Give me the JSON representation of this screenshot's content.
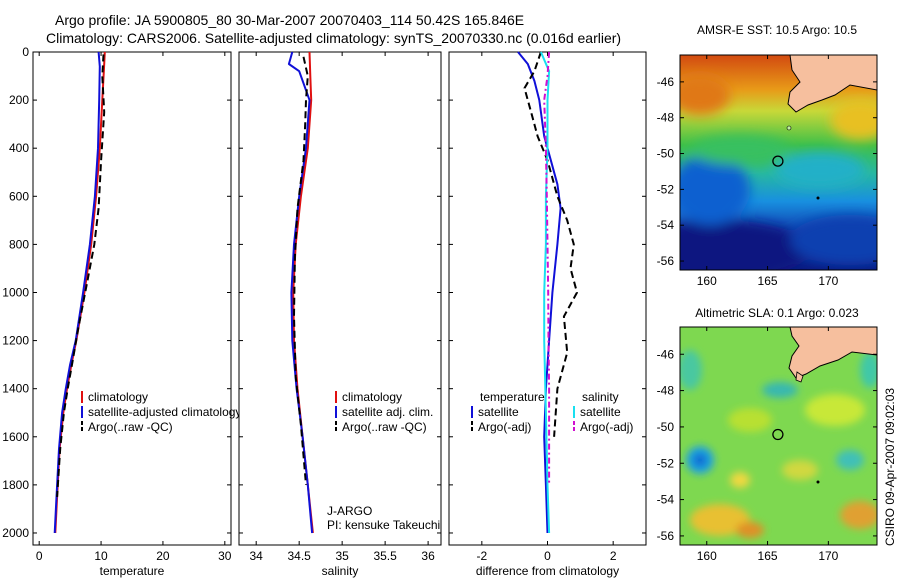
{
  "header": {
    "line1": "Argo profile: JA 5900805_80 30-Mar-2007 20070403_114 50.42S 165.846E",
    "line2": "Climatology: CARS2006. Satellite-adjusted climatology: synTS_20070330.nc (0.016d earlier)"
  },
  "credit": "CSIRO 09-Apr-2007 09:02:03",
  "colors": {
    "red": "#e01010",
    "blue": "#1010d8",
    "black": "#000000",
    "cyan": "#18e0f0",
    "magenta": "#d010d0"
  },
  "chart_data": [
    {
      "type": "line",
      "xlabel": "temperature",
      "ylabel": "",
      "xlim": [
        -1,
        31
      ],
      "ylim": [
        2050,
        0
      ],
      "xticks": [
        "0",
        "10",
        "20",
        "30"
      ],
      "yticks": [
        "0",
        "200",
        "400",
        "600",
        "800",
        "1000",
        "1200",
        "1400",
        "1600",
        "1800",
        "2000"
      ],
      "legend": [
        "climatology",
        "satellite-adjusted climatology",
        "Argo(..raw -QC)"
      ],
      "legend_position": "bottom-right",
      "series": [
        {
          "name": "climatology",
          "color": "red",
          "dash": "solid",
          "x": [
            10.6,
            10.5,
            10.2,
            9.8,
            9.2,
            8.4,
            7.3,
            6.0,
            5.2,
            4.5,
            3.9,
            3.3,
            2.9,
            2.6
          ],
          "y": [
            0,
            50,
            200,
            400,
            600,
            800,
            1000,
            1200,
            1300,
            1400,
            1500,
            1650,
            1850,
            2000
          ]
        },
        {
          "name": "satellite-adjusted climatology",
          "color": "blue",
          "dash": "solid",
          "x": [
            9.6,
            9.8,
            9.7,
            9.5,
            9.0,
            8.2,
            7.1,
            5.9,
            5.0,
            4.3,
            3.7,
            3.2,
            2.8,
            2.5
          ],
          "y": [
            0,
            60,
            200,
            400,
            600,
            800,
            1000,
            1200,
            1300,
            1400,
            1500,
            1650,
            1850,
            2000
          ]
        },
        {
          "name": "Argo(..raw -QC)",
          "color": "black",
          "dash": "dashed",
          "x": [
            10.4,
            10.2,
            10.5,
            10.0,
            9.6,
            8.9,
            7.8,
            6.3,
            5.3,
            4.6,
            4.0,
            3.4,
            2.9
          ],
          "y": [
            10,
            100,
            250,
            450,
            650,
            800,
            950,
            1150,
            1300,
            1400,
            1500,
            1650,
            1850
          ]
        }
      ]
    },
    {
      "type": "line",
      "xlabel": "salinity",
      "ylabel": "",
      "xlim": [
        33.8,
        36.15
      ],
      "ylim": [
        2050,
        0
      ],
      "xticks": [
        "34",
        "34.5",
        "35",
        "35.5",
        "36"
      ],
      "legend": [
        "climatology",
        "satellite adj. clim.",
        "Argo(..raw -QC)"
      ],
      "legend_position": "bottom-right",
      "annotation": [
        "J-ARGO",
        "PI: kensuke Takeuchi"
      ],
      "series": [
        {
          "name": "climatology",
          "color": "red",
          "dash": "solid",
          "x": [
            34.62,
            34.63,
            34.64,
            34.6,
            34.52,
            34.46,
            34.43,
            34.44,
            34.48,
            34.54,
            34.6,
            34.66
          ],
          "y": [
            0,
            100,
            200,
            400,
            600,
            800,
            1000,
            1200,
            1400,
            1600,
            1800,
            2000
          ]
        },
        {
          "name": "satellite adj. clim.",
          "color": "blue",
          "dash": "solid",
          "x": [
            34.42,
            34.38,
            34.5,
            34.62,
            34.58,
            34.5,
            34.44,
            34.41,
            34.42,
            34.47,
            34.54,
            34.6,
            34.65
          ],
          "y": [
            0,
            50,
            80,
            200,
            400,
            600,
            800,
            1000,
            1200,
            1400,
            1600,
            1800,
            2000
          ]
        },
        {
          "name": "Argo(..raw -QC)",
          "color": "black",
          "dash": "dashed",
          "x": [
            34.55,
            34.6,
            34.58,
            34.57,
            34.55,
            34.48,
            34.45,
            34.44,
            34.46,
            34.52,
            34.58
          ],
          "y": [
            20,
            100,
            200,
            300,
            450,
            650,
            850,
            1100,
            1350,
            1550,
            1800
          ]
        }
      ]
    },
    {
      "type": "line",
      "xlabel": "difference from climatology",
      "ylabel": "",
      "xlim": [
        -3,
        3
      ],
      "ylim": [
        2050,
        0
      ],
      "xticks": [
        "-2",
        "0",
        "2"
      ],
      "legend": [
        "temperature",
        "satellite",
        "Argo(-adj)",
        "salinity",
        "satellite",
        "Argo(-adj)"
      ],
      "legend_position": "bottom",
      "series": [
        {
          "name": "temperature satellite",
          "color": "blue",
          "dash": "solid",
          "x": [
            -0.9,
            -0.6,
            -0.4,
            -0.25,
            -0.1,
            0.1,
            0.3,
            0.4,
            0.3,
            0.15,
            0.05,
            -0.05,
            -0.1,
            -0.05,
            0.0
          ],
          "y": [
            0,
            50,
            120,
            200,
            350,
            450,
            550,
            650,
            800,
            1000,
            1200,
            1400,
            1600,
            1800,
            2000
          ]
        },
        {
          "name": "temperature Argo(-adj)",
          "color": "black",
          "dash": "dashed",
          "x": [
            -0.2,
            -0.4,
            -0.7,
            -0.5,
            -0.3,
            0.0,
            0.3,
            0.6,
            0.8,
            0.7,
            0.9,
            0.5,
            0.6,
            0.3,
            0.2
          ],
          "y": [
            0,
            80,
            150,
            250,
            350,
            450,
            600,
            700,
            800,
            900,
            1000,
            1100,
            1250,
            1400,
            1600
          ]
        },
        {
          "name": "salinity satellite",
          "color": "cyan",
          "dash": "solid",
          "x": [
            -0.2,
            0.05,
            0.0,
            0.0,
            -0.05,
            -0.05,
            -0.1,
            -0.1,
            -0.05,
            0.0,
            0.05
          ],
          "y": [
            0,
            80,
            200,
            400,
            600,
            800,
            1000,
            1200,
            1500,
            1800,
            2000
          ]
        },
        {
          "name": "salinity Argo(-adj)",
          "color": "magenta",
          "dash": "dashdot",
          "x": [
            0.05,
            0.0,
            -0.1,
            -0.05,
            -0.02,
            0.0,
            0.02,
            0.03,
            0.05,
            0.05,
            0.05
          ],
          "y": [
            0,
            100,
            200,
            400,
            600,
            800,
            1000,
            1200,
            1400,
            1600,
            1800
          ]
        }
      ]
    },
    {
      "type": "heatmap",
      "title": "AMSR-E SST: 10.5 Argo: 10.5",
      "xlim": [
        157.8,
        174
      ],
      "ylim": [
        -56.5,
        -44.5
      ],
      "xticks": [
        "160",
        "165",
        "170"
      ],
      "yticks": [
        "-46",
        "-48",
        "-50",
        "-52",
        "-54",
        "-56"
      ],
      "marker": {
        "lon": 165.85,
        "lat": -50.42
      }
    },
    {
      "type": "heatmap",
      "title": "Altimetric SLA: 0.1 Argo: 0.023",
      "xlim": [
        157.8,
        174
      ],
      "ylim": [
        -56.5,
        -44.5
      ],
      "xticks": [
        "160",
        "165",
        "170"
      ],
      "yticks": [
        "-46",
        "-48",
        "-50",
        "-52",
        "-54",
        "-56"
      ],
      "marker": {
        "lon": 165.85,
        "lat": -50.42
      }
    }
  ]
}
